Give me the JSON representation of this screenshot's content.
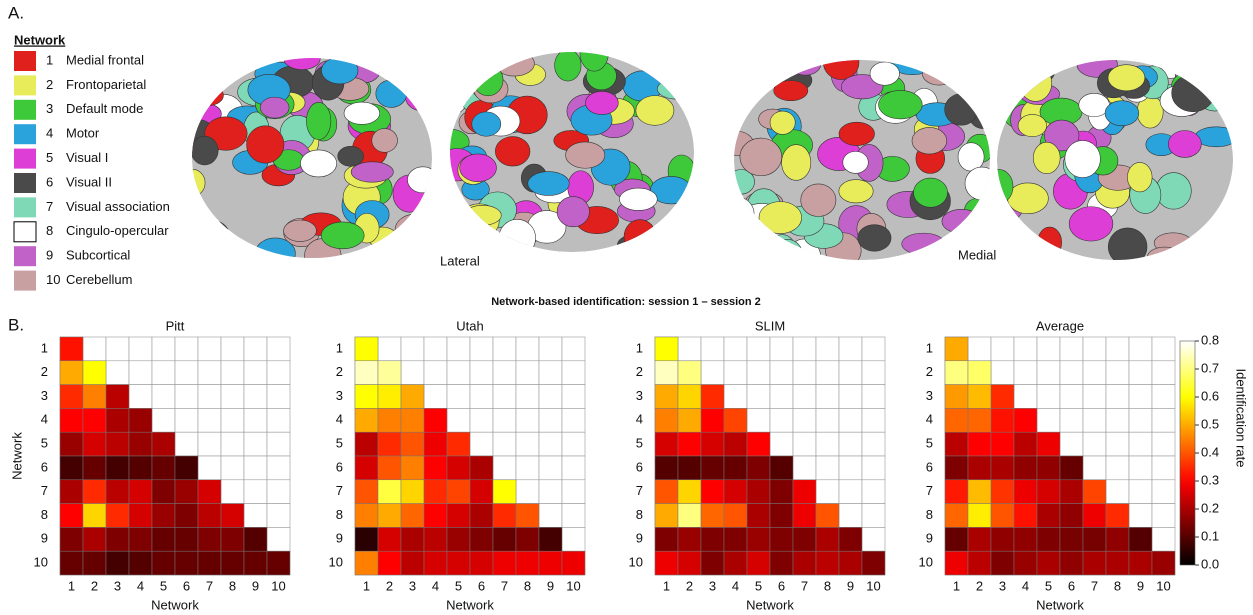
{
  "figure": {
    "panel_a": "A.",
    "panel_b": "B.",
    "legend_title": "Network",
    "legend": [
      {
        "number": "1",
        "label": "Medial frontal",
        "color": "#e0201c"
      },
      {
        "number": "2",
        "label": "Frontoparietal",
        "color": "#e8ec5a"
      },
      {
        "number": "3",
        "label": "Default mode",
        "color": "#3ec93a"
      },
      {
        "number": "4",
        "label": "Motor",
        "color": "#2aa3dc"
      },
      {
        "number": "5",
        "label": "Visual I",
        "color": "#dd3fd6"
      },
      {
        "number": "6",
        "label": "Visual II",
        "color": "#4a4a4a"
      },
      {
        "number": "7",
        "label": "Visual association",
        "color": "#7fd9b6"
      },
      {
        "number": "8",
        "label": "Cingulo-opercular",
        "color": "#ffffff"
      },
      {
        "number": "9",
        "label": "Subcortical",
        "color": "#c062c8"
      },
      {
        "number": "10",
        "label": "Cerebellum",
        "color": "#c9a0a2"
      }
    ],
    "view_labels": [
      "Lateral",
      "Medial"
    ],
    "title": "Network-based identification: session 1 – session 2",
    "colorbar": {
      "label": "Identification rate",
      "lim": [
        0,
        0.8
      ],
      "colormap": "hot",
      "ticks": [
        {
          "value": 0,
          "label": "0.0"
        },
        0.1,
        0.2,
        0.3,
        0.4,
        0.5,
        0.6,
        0.7,
        0.8
      ]
    }
  },
  "chart_data": [
    {
      "type": "heatmap",
      "title": "Pitt",
      "xlabel": "Network",
      "ylabel": "Network",
      "x": [
        "1",
        "2",
        "3",
        "4",
        "5",
        "6",
        "7",
        "8",
        "9",
        "10"
      ],
      "y": [
        "1",
        "2",
        "3",
        "4",
        "5",
        "6",
        "7",
        "8",
        "9",
        "10"
      ],
      "z": [
        [
          0.32
        ],
        [
          0.5,
          0.6
        ],
        [
          0.35,
          0.45,
          0.22
        ],
        [
          0.3,
          0.3,
          0.2,
          0.18
        ],
        [
          0.18,
          0.25,
          0.22,
          0.18,
          0.2
        ],
        [
          0.08,
          0.12,
          0.08,
          0.1,
          0.12,
          0.08
        ],
        [
          0.2,
          0.35,
          0.22,
          0.25,
          0.15,
          0.18,
          0.25
        ],
        [
          0.3,
          0.55,
          0.35,
          0.25,
          0.18,
          0.15,
          0.22,
          0.25
        ],
        [
          0.15,
          0.2,
          0.15,
          0.15,
          0.12,
          0.12,
          0.15,
          0.15,
          0.1
        ],
        [
          0.12,
          0.12,
          0.08,
          0.1,
          0.12,
          0.12,
          0.12,
          0.12,
          0.12,
          0.12
        ]
      ]
    },
    {
      "type": "heatmap",
      "title": "Utah",
      "xlabel": "Network",
      "x": [
        "1",
        "2",
        "3",
        "4",
        "5",
        "6",
        "7",
        "8",
        "9",
        "10"
      ],
      "y": [
        "1",
        "2",
        "3",
        "4",
        "5",
        "6",
        "7",
        "8",
        "9",
        "10"
      ],
      "z": [
        [
          0.6
        ],
        [
          0.75,
          0.72
        ],
        [
          0.6,
          0.58,
          0.5
        ],
        [
          0.5,
          0.45,
          0.45,
          0.3
        ],
        [
          0.22,
          0.35,
          0.4,
          0.28,
          0.35
        ],
        [
          0.25,
          0.4,
          0.45,
          0.3,
          0.25,
          0.2
        ],
        [
          0.4,
          0.65,
          0.55,
          0.35,
          0.38,
          0.25,
          0.6
        ],
        [
          0.45,
          0.5,
          0.42,
          0.3,
          0.25,
          0.2,
          0.35,
          0.4
        ],
        [
          0.05,
          0.25,
          0.2,
          0.22,
          0.18,
          0.15,
          0.12,
          0.15,
          0.08
        ],
        [
          0.45,
          0.3,
          0.22,
          0.25,
          0.25,
          0.25,
          0.28,
          0.28,
          0.28,
          0.28
        ]
      ]
    },
    {
      "type": "heatmap",
      "title": "SLIM",
      "xlabel": "Network",
      "x": [
        "1",
        "2",
        "3",
        "4",
        "5",
        "6",
        "7",
        "8",
        "9",
        "10"
      ],
      "y": [
        "1",
        "2",
        "3",
        "4",
        "5",
        "6",
        "7",
        "8",
        "9",
        "10"
      ],
      "z": [
        [
          0.6
        ],
        [
          0.75,
          0.7
        ],
        [
          0.5,
          0.55,
          0.35
        ],
        [
          0.45,
          0.5,
          0.3,
          0.38
        ],
        [
          0.25,
          0.3,
          0.25,
          0.22,
          0.3
        ],
        [
          0.1,
          0.1,
          0.12,
          0.12,
          0.15,
          0.1
        ],
        [
          0.4,
          0.55,
          0.3,
          0.25,
          0.2,
          0.15,
          0.28
        ],
        [
          0.5,
          0.7,
          0.42,
          0.4,
          0.2,
          0.15,
          0.28,
          0.4
        ],
        [
          0.15,
          0.18,
          0.15,
          0.15,
          0.18,
          0.15,
          0.15,
          0.2,
          0.15
        ],
        [
          0.28,
          0.25,
          0.15,
          0.2,
          0.25,
          0.15,
          0.2,
          0.22,
          0.2,
          0.15
        ]
      ]
    },
    {
      "type": "heatmap",
      "title": "Average",
      "xlabel": "Network",
      "x": [
        "1",
        "2",
        "3",
        "4",
        "5",
        "6",
        "7",
        "8",
        "9",
        "10"
      ],
      "y": [
        "1",
        "2",
        "3",
        "4",
        "5",
        "6",
        "7",
        "8",
        "9",
        "10"
      ],
      "z": [
        [
          0.5
        ],
        [
          0.7,
          0.68
        ],
        [
          0.48,
          0.52,
          0.35
        ],
        [
          0.42,
          0.42,
          0.32,
          0.3
        ],
        [
          0.22,
          0.3,
          0.3,
          0.22,
          0.28
        ],
        [
          0.15,
          0.2,
          0.2,
          0.17,
          0.17,
          0.12
        ],
        [
          0.33,
          0.52,
          0.36,
          0.28,
          0.25,
          0.2,
          0.38
        ],
        [
          0.42,
          0.58,
          0.4,
          0.32,
          0.2,
          0.17,
          0.28,
          0.35
        ],
        [
          0.12,
          0.2,
          0.17,
          0.17,
          0.15,
          0.14,
          0.14,
          0.17,
          0.1
        ],
        [
          0.28,
          0.22,
          0.15,
          0.18,
          0.2,
          0.17,
          0.2,
          0.2,
          0.2,
          0.18
        ]
      ]
    }
  ]
}
